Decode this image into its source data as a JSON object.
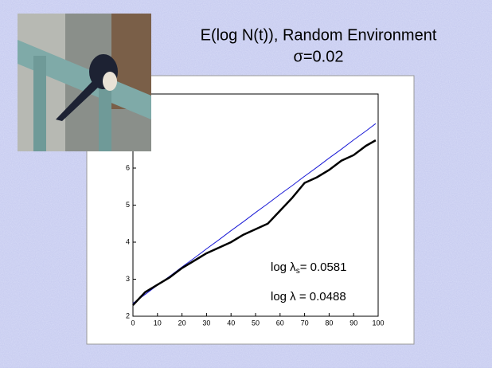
{
  "chart_data": {
    "type": "line",
    "title": "E(log N(t)), Random Environment",
    "subtitle": "σ=0.02",
    "x": [
      0,
      5,
      10,
      15,
      20,
      25,
      30,
      35,
      40,
      45,
      50,
      55,
      60,
      65,
      70,
      75,
      80,
      85,
      90,
      95,
      99
    ],
    "series": [
      {
        "color": "#1a1ad6",
        "values": [
          2.35,
          2.59,
          2.84,
          3.08,
          3.33,
          3.57,
          3.82,
          4.06,
          4.31,
          4.55,
          4.8,
          5.04,
          5.29,
          5.53,
          5.78,
          6.02,
          6.27,
          6.51,
          6.76,
          7.0,
          7.2
        ]
      },
      {
        "color": "#000000",
        "values": [
          2.3,
          2.65,
          2.85,
          3.05,
          3.3,
          3.5,
          3.7,
          3.85,
          4.0,
          4.2,
          4.35,
          4.5,
          4.85,
          5.2,
          5.6,
          5.75,
          5.95,
          6.2,
          6.35,
          6.6,
          6.75
        ]
      }
    ],
    "xlim": [
      0,
      100
    ],
    "xticks": [
      0,
      10,
      20,
      30,
      40,
      50,
      60,
      70,
      80,
      90,
      100
    ],
    "ylim": [
      2,
      8
    ],
    "yticks": [
      2,
      3,
      4,
      5,
      6
    ],
    "annotations": [
      {
        "prefix": "log λ",
        "subscript": "s",
        "rest": "= 0.0581"
      },
      {
        "prefix": "log λ = 0.0488"
      }
    ]
  }
}
